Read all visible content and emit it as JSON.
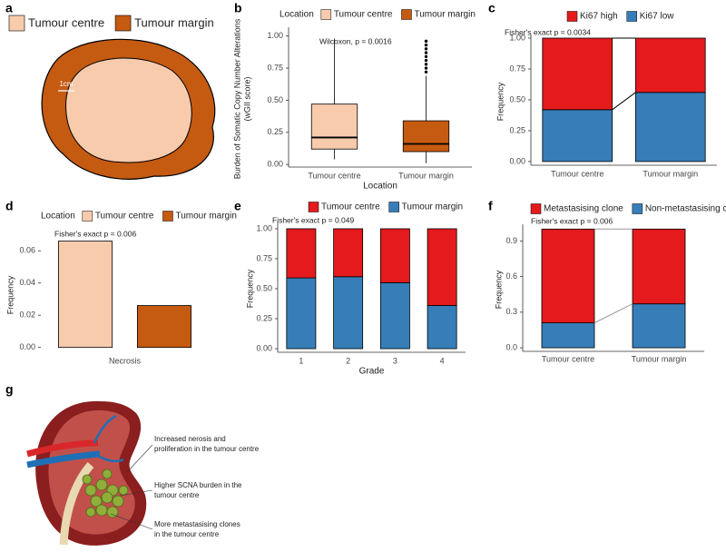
{
  "panel_labels": [
    "a",
    "b",
    "c",
    "d",
    "e",
    "f",
    "g"
  ],
  "diagram_a": {
    "legend": [
      {
        "label": "Tumour centre",
        "color": "#f8cbad"
      },
      {
        "label": "Tumour margin",
        "color": "#c55a11"
      }
    ],
    "scale_label": "1cm"
  },
  "diagram_g": {
    "annotations": [
      [
        "Increased nerosis and",
        "proliferation in the tumour centre"
      ],
      [
        "Higher SCNA burden in the",
        "tumour centre"
      ],
      [
        "More metastasising clones",
        "in the tumour centre"
      ]
    ]
  },
  "chart_data": [
    {
      "type": "box",
      "legend_title": "Location",
      "categories": [
        "Tumour centre",
        "Tumour margin"
      ],
      "colors": [
        "#f8cbad",
        "#c55a11"
      ],
      "boxes": [
        {
          "min": 0.04,
          "q1": 0.12,
          "median": 0.21,
          "q3": 0.47,
          "max": 0.98
        },
        {
          "min": 0.01,
          "q1": 0.1,
          "median": 0.16,
          "q3": 0.34,
          "max": 0.69,
          "outliers": [
            0.72,
            0.75,
            0.78,
            0.81,
            0.84,
            0.87,
            0.9,
            0.93,
            0.96
          ]
        }
      ],
      "annotation": "Wilcoxon, p = 0.0016",
      "ylabel": [
        "Burden of Somatic Copy Number Alterations",
        "(wGII score)"
      ],
      "xlabel": "Location",
      "ylim": [
        -0.02,
        1.04
      ],
      "yticks": [
        {
          "value": 0,
          "label": "0.00"
        },
        0.25,
        {
          "value": 0.5,
          "label": "0.50"
        },
        0.75,
        {
          "value": 1,
          "label": "1.00"
        }
      ]
    },
    {
      "type": "stacked_bar",
      "categories": [
        "Tumour centre",
        "Tumour margin"
      ],
      "series": [
        {
          "name": "Ki67 high",
          "color": "#e41a1c",
          "values": [
            0.58,
            0.44
          ]
        },
        {
          "name": "Ki67 low",
          "color": "#377eb8",
          "values": [
            0.42,
            0.56
          ]
        }
      ],
      "connector_color": "#000000",
      "annotation": "Fisher's exact p = 0.0034",
      "ylabel": "Frequency",
      "ylim": [
        -0.03,
        1
      ],
      "yticks": [
        {
          "value": 0,
          "label": "0.00"
        },
        0.25,
        {
          "value": 0.5,
          "label": "0.50"
        },
        0.75,
        {
          "value": 1,
          "label": "1.00"
        }
      ]
    },
    {
      "type": "bar",
      "legend_title": "Location",
      "categories": [
        "Necrosis"
      ],
      "series": [
        {
          "name": "Tumour centre",
          "color": "#f8cbad",
          "values": [
            0.066
          ]
        },
        {
          "name": "Tumour margin",
          "color": "#c55a11",
          "values": [
            0.026
          ]
        }
      ],
      "annotation": "Fisher's exact p = 0.006",
      "ylabel": "Frequency",
      "ylim": [
        -0.003,
        0.068
      ],
      "yticks": [
        {
          "value": 0,
          "label": "0.00"
        },
        0.02,
        0.04,
        0.06
      ]
    },
    {
      "type": "stacked_bar",
      "categories": [
        "1",
        "2",
        "3",
        "4"
      ],
      "series": [
        {
          "name": "Tumour centre",
          "color": "#e41a1c",
          "values": [
            0.41,
            0.4,
            0.45,
            0.64
          ]
        },
        {
          "name": "Tumour margin",
          "color": "#377eb8",
          "values": [
            0.59,
            0.6,
            0.55,
            0.36
          ]
        }
      ],
      "annotation": "Fisher's exact p = 0.049",
      "ylabel": "Frequency",
      "xlabel": "Grade",
      "ylim": [
        -0.03,
        1.03
      ],
      "yticks": [
        {
          "value": 0,
          "label": "0.00"
        },
        0.25,
        {
          "value": 0.5,
          "label": "0.50"
        },
        0.75,
        {
          "value": 1,
          "label": "1.00"
        }
      ]
    },
    {
      "type": "stacked_bar",
      "categories": [
        "Tumour centre",
        "Tumour margin"
      ],
      "series": [
        {
          "name": "Metastasising clone",
          "color": "#e41a1c",
          "values": [
            0.79,
            0.63
          ]
        },
        {
          "name": "Non-metastasising clone",
          "color": "#377eb8",
          "values": [
            0.21,
            0.37
          ]
        }
      ],
      "connector_color": "#999999",
      "annotation": "Fisher's exact p = 0.006",
      "ylabel": "Frequency",
      "ylim": [
        -0.03,
        1.01
      ],
      "yticks": [
        {
          "value": 0,
          "label": "0.0"
        },
        0.3,
        0.6,
        0.9
      ]
    }
  ]
}
